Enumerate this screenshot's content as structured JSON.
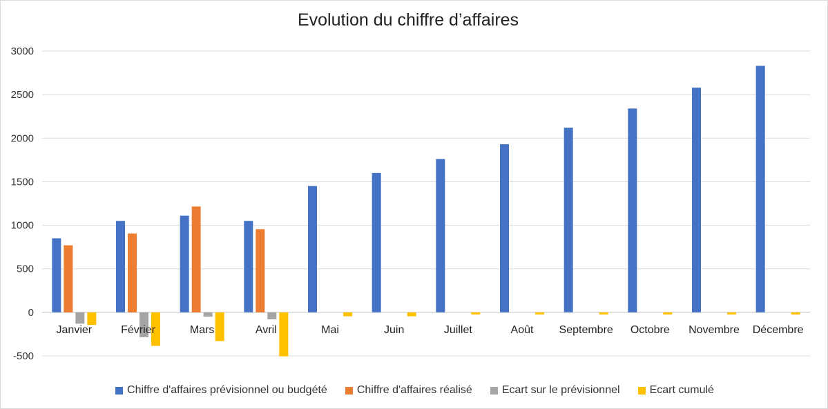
{
  "chart_data": {
    "type": "bar",
    "title": "Evolution du chiffre d’affaires",
    "xlabel": "",
    "ylabel": "",
    "ylim": [
      -500,
      3000
    ],
    "yticks": [
      3000,
      2500,
      2000,
      1500,
      1000,
      500,
      0,
      -500
    ],
    "grid": true,
    "legend_position": "bottom",
    "categories": [
      "Janvier",
      "Février",
      "Mars",
      "Avril",
      "Mai",
      "Juin",
      "Juillet",
      "Août",
      "Septembre",
      "Octobre",
      "Novembre",
      "Décembre"
    ],
    "series": [
      {
        "name": "Chiffre d'affaires prévisionnel ou budgété",
        "color": "#4472c4",
        "values": [
          850,
          1050,
          1110,
          1050,
          1450,
          1600,
          1760,
          1930,
          2120,
          2340,
          2580,
          2830
        ]
      },
      {
        "name": "Chiffre d'affaires réalisé",
        "color": "#ed7d31",
        "values": [
          770,
          905,
          1215,
          955,
          null,
          null,
          null,
          null,
          null,
          null,
          null,
          null
        ]
      },
      {
        "name": "Ecart sur le prévisionnel",
        "color": "#a5a5a5",
        "values": [
          -130,
          -285,
          -50,
          -80,
          null,
          null,
          null,
          null,
          null,
          null,
          null,
          null
        ]
      },
      {
        "name": "Ecart cumulé",
        "color": "#ffc000",
        "values": [
          -145,
          -385,
          -330,
          -505,
          -45,
          -45,
          -25,
          -25,
          -25,
          -25,
          -25,
          -25
        ]
      }
    ]
  }
}
